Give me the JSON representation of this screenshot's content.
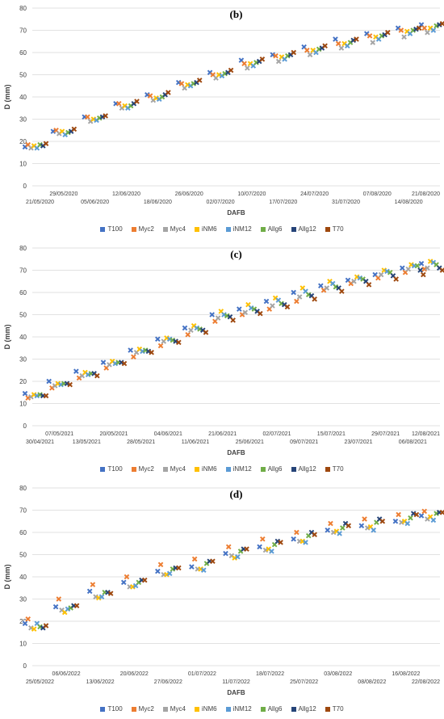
{
  "chart_data": [
    {
      "type": "scatter",
      "panel_label": "(b)",
      "xlabel": "DAFB",
      "ylabel": "D (mm)",
      "ylim": [
        0,
        80
      ],
      "yticks": [
        0,
        10,
        20,
        30,
        40,
        50,
        60,
        70,
        80
      ],
      "grid": true,
      "legend_position": "bottom",
      "x_tick_labels": [
        "21/05/2020",
        "29/05/2020",
        "05/06/2020",
        "12/06/2020",
        "18/06/2020",
        "26/06/2020",
        "02/07/2020",
        "10/07/2020",
        "17/07/2020",
        "24/07/2020",
        "31/07/2020",
        "07/08/2020",
        "14/08/2020",
        "21/08/2020"
      ],
      "series": [
        {
          "name": "T100",
          "color": "#4472C4",
          "values": [
            17.5,
            24.5,
            31,
            37,
            41,
            46.5,
            51,
            56.5,
            59,
            62.5,
            66,
            68.5,
            71,
            72.5
          ]
        },
        {
          "name": "Myc2",
          "color": "#ED7D31",
          "values": [
            18.5,
            25,
            31,
            37,
            40.5,
            46,
            50,
            55,
            58.5,
            61,
            64,
            67.5,
            70,
            71
          ]
        },
        {
          "name": "Myc4",
          "color": "#A5A5A5",
          "values": [
            17,
            23.5,
            29,
            35,
            38.5,
            44,
            48.5,
            53,
            56,
            59,
            62,
            64.5,
            67,
            69
          ]
        },
        {
          "name": "iNM6",
          "color": "#FFC000",
          "values": [
            18,
            24.5,
            30,
            36,
            39.5,
            45.5,
            50,
            55,
            58,
            61,
            64,
            67,
            69.5,
            71
          ]
        },
        {
          "name": "iNM12",
          "color": "#5B9BD5",
          "values": [
            17,
            23,
            29.5,
            35,
            39,
            45,
            49.5,
            54,
            57,
            60,
            63,
            66,
            68.5,
            70
          ]
        },
        {
          "name": "Allg6",
          "color": "#70AD47",
          "values": [
            18.5,
            24,
            30.5,
            36,
            40,
            46,
            50.5,
            55.5,
            58.5,
            61.5,
            64.5,
            67.5,
            70,
            72
          ]
        },
        {
          "name": "Allg12",
          "color": "#264478",
          "values": [
            18,
            24.5,
            31,
            37,
            41,
            46.5,
            51,
            56,
            59,
            62,
            65.5,
            68,
            70.5,
            72.5
          ]
        },
        {
          "name": "T70",
          "color": "#9E480E",
          "values": [
            19,
            25.5,
            31.5,
            38,
            42,
            47.5,
            52,
            57,
            60,
            63,
            66,
            69,
            71,
            73
          ]
        }
      ]
    },
    {
      "type": "scatter",
      "panel_label": "(c)",
      "xlabel": "DAFB",
      "ylabel": "D (mm)",
      "ylim": [
        0,
        80
      ],
      "yticks": [
        0,
        10,
        20,
        30,
        40,
        50,
        60,
        70,
        80
      ],
      "grid": true,
      "legend_position": "bottom",
      "x_tick_labels": [
        "30/04/2021",
        "07/05/2021",
        "13/05/2021",
        "20/05/2021",
        "28/05/2021",
        "04/06/2021",
        "11/06/2021",
        "21/06/2021",
        "25/06/2021",
        "02/07/2021",
        "09/07/2021",
        "15/07/2021",
        "23/07/2021",
        "29/07/2021",
        "06/08/2021",
        "12/08/2021"
      ],
      "series": [
        {
          "name": "T100",
          "color": "#4472C4",
          "values": [
            14.5,
            20,
            24.5,
            28.5,
            34,
            39,
            44,
            50,
            52.5,
            56,
            60,
            63,
            65.5,
            68,
            71,
            73
          ]
        },
        {
          "name": "Myc2",
          "color": "#ED7D31",
          "values": [
            12.5,
            17,
            21.5,
            26,
            31,
            36,
            41,
            47,
            50,
            52.5,
            56,
            61,
            64,
            66.5,
            69,
            70.5
          ]
        },
        {
          "name": "Myc4",
          "color": "#A5A5A5",
          "values": [
            13,
            18,
            22.5,
            27.5,
            33,
            38,
            43,
            48.5,
            51,
            54,
            58,
            62,
            65,
            68,
            70.5,
            71
          ]
        },
        {
          "name": "iNM6",
          "color": "#FFC000",
          "values": [
            14,
            19,
            24,
            29,
            34.5,
            39.5,
            45,
            51.5,
            54.5,
            57.5,
            62,
            65,
            67,
            70,
            72.5,
            74
          ]
        },
        {
          "name": "iNM12",
          "color": "#5B9BD5",
          "values": [
            13.5,
            18.5,
            23,
            28,
            33.5,
            39,
            44,
            50,
            53,
            56.5,
            60.5,
            64,
            66.5,
            69.5,
            72,
            73.5
          ]
        },
        {
          "name": "Allg6",
          "color": "#70AD47",
          "values": [
            14,
            19,
            23.5,
            28.5,
            34,
            38.5,
            43.5,
            49.5,
            52.5,
            55,
            59,
            62.5,
            66,
            69,
            72,
            72.5
          ]
        },
        {
          "name": "Allg12",
          "color": "#264478",
          "values": [
            13.5,
            19,
            23.5,
            28.5,
            33.5,
            38,
            43,
            49,
            51.5,
            54.5,
            58.5,
            62,
            65,
            67.5,
            70,
            71
          ]
        },
        {
          "name": "T70",
          "color": "#9E480E",
          "values": [
            13.5,
            18.5,
            22.5,
            28,
            33,
            37.5,
            42,
            47.5,
            50.5,
            53.5,
            57,
            60.5,
            63.5,
            66,
            68,
            70
          ]
        }
      ]
    },
    {
      "type": "scatter",
      "panel_label": "(d)",
      "xlabel": "DAFB",
      "ylabel": "D (mm)",
      "ylim": [
        0,
        80
      ],
      "yticks": [
        0,
        10,
        20,
        30,
        40,
        50,
        60,
        70,
        80
      ],
      "grid": true,
      "legend_position": "bottom",
      "x_tick_labels": [
        "25/05/2022",
        "06/06/2022",
        "13/06/2022",
        "20/06/2022",
        "27/06/2022",
        "01/07/2022",
        "11/07/2022",
        "18/07/2022",
        "25/07/2022",
        "03/08/2022",
        "08/08/2022",
        "16/08/2022",
        "22/08/2022"
      ],
      "series": [
        {
          "name": "T100",
          "color": "#4472C4",
          "values": [
            19,
            26.5,
            33.5,
            37.5,
            42.5,
            44.5,
            50.5,
            53.5,
            57,
            61,
            63,
            65,
            67.5
          ]
        },
        {
          "name": "Myc2",
          "color": "#ED7D31",
          "values": [
            21,
            30,
            36.5,
            40,
            45.5,
            48,
            53.5,
            57,
            60,
            64,
            66,
            68,
            69.5
          ]
        },
        {
          "name": "Myc4",
          "color": "#A5A5A5",
          "values": [
            17,
            25,
            31,
            35.5,
            41,
            43.5,
            49.5,
            52,
            56,
            60,
            62,
            64.5,
            66
          ]
        },
        {
          "name": "iNM6",
          "color": "#FFC000",
          "values": [
            16.5,
            24,
            30.5,
            35.5,
            41,
            43.5,
            48.5,
            52.5,
            56,
            60.5,
            62.5,
            65,
            67
          ]
        },
        {
          "name": "iNM12",
          "color": "#5B9BD5",
          "values": [
            19,
            25.5,
            31,
            36,
            41.5,
            43,
            49,
            51.5,
            55.5,
            59.5,
            61,
            64,
            65.5
          ]
        },
        {
          "name": "Allg6",
          "color": "#70AD47",
          "values": [
            17.5,
            26,
            33,
            37.5,
            43.5,
            46,
            51.5,
            54.5,
            58.5,
            62,
            64.5,
            66.5,
            68.5
          ]
        },
        {
          "name": "Allg12",
          "color": "#264478",
          "values": [
            17,
            27,
            33,
            38.5,
            44,
            47,
            52.5,
            56,
            60,
            64,
            66,
            68.5,
            69
          ]
        },
        {
          "name": "T70",
          "color": "#9E480E",
          "values": [
            18,
            27,
            32.5,
            38.5,
            44,
            47,
            52.5,
            55.5,
            59,
            63,
            65,
            68,
            69
          ]
        }
      ]
    }
  ]
}
